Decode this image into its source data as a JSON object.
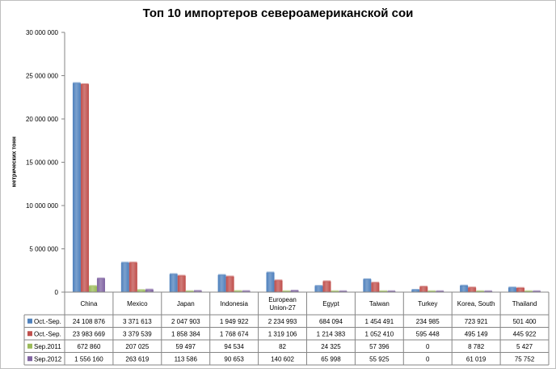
{
  "chart_data": {
    "type": "bar",
    "title": "Топ 10 импортеров североамериканской сои",
    "xlabel": "",
    "ylabel": "метрических тонн",
    "ylim": [
      0,
      30000000
    ],
    "yticks": [
      "0",
      "5 000 000",
      "10 000 000",
      "15 000 000",
      "20 000 000",
      "25 000 000",
      "30 000 000"
    ],
    "grid": false,
    "legend": "table-below",
    "categories": [
      "China",
      "Mexico",
      "Japan",
      "Indonesia",
      "European Union-27",
      "Egypt",
      "Taiwan",
      "Turkey",
      "Korea, South",
      "Thailand"
    ],
    "series": [
      {
        "name": "Oct.-Sep.",
        "color": "#4f81bd",
        "values": [
          24108876,
          3371613,
          2047903,
          1949922,
          2234993,
          684094,
          1454491,
          234985,
          723921,
          501400
        ],
        "labels": [
          "24 108 876",
          "3 371 613",
          "2 047 903",
          "1 949 922",
          "2 234 993",
          "684 094",
          "1 454 491",
          "234 985",
          "723 921",
          "501 400"
        ]
      },
      {
        "name": "Oct.-Sep.",
        "color": "#c0504d",
        "values": [
          23983669,
          3379539,
          1858384,
          1768674,
          1319106,
          1214383,
          1052410,
          595448,
          495149,
          445922
        ],
        "labels": [
          "23 983 669",
          "3 379 539",
          "1 858 384",
          "1 768 674",
          "1 319 106",
          "1 214 383",
          "1 052 410",
          "595 448",
          "495 149",
          "445 922"
        ]
      },
      {
        "name": "Sep.2011",
        "color": "#9bbb59",
        "values": [
          672860,
          207025,
          59497,
          94534,
          82,
          24325,
          57396,
          0,
          8782,
          5427
        ],
        "labels": [
          "672 860",
          "207 025",
          "59 497",
          "94 534",
          "82",
          "24 325",
          "57 396",
          "0",
          "8 782",
          "5 427"
        ]
      },
      {
        "name": "Sep.2012",
        "color": "#8064a2",
        "values": [
          1556160,
          263619,
          113586,
          90653,
          140602,
          65998,
          55925,
          0,
          61019,
          75752
        ],
        "labels": [
          "1 556 160",
          "263 619",
          "113 586",
          "90 653",
          "140 602",
          "65 998",
          "55 925",
          "0",
          "61 019",
          "75 752"
        ]
      }
    ]
  }
}
